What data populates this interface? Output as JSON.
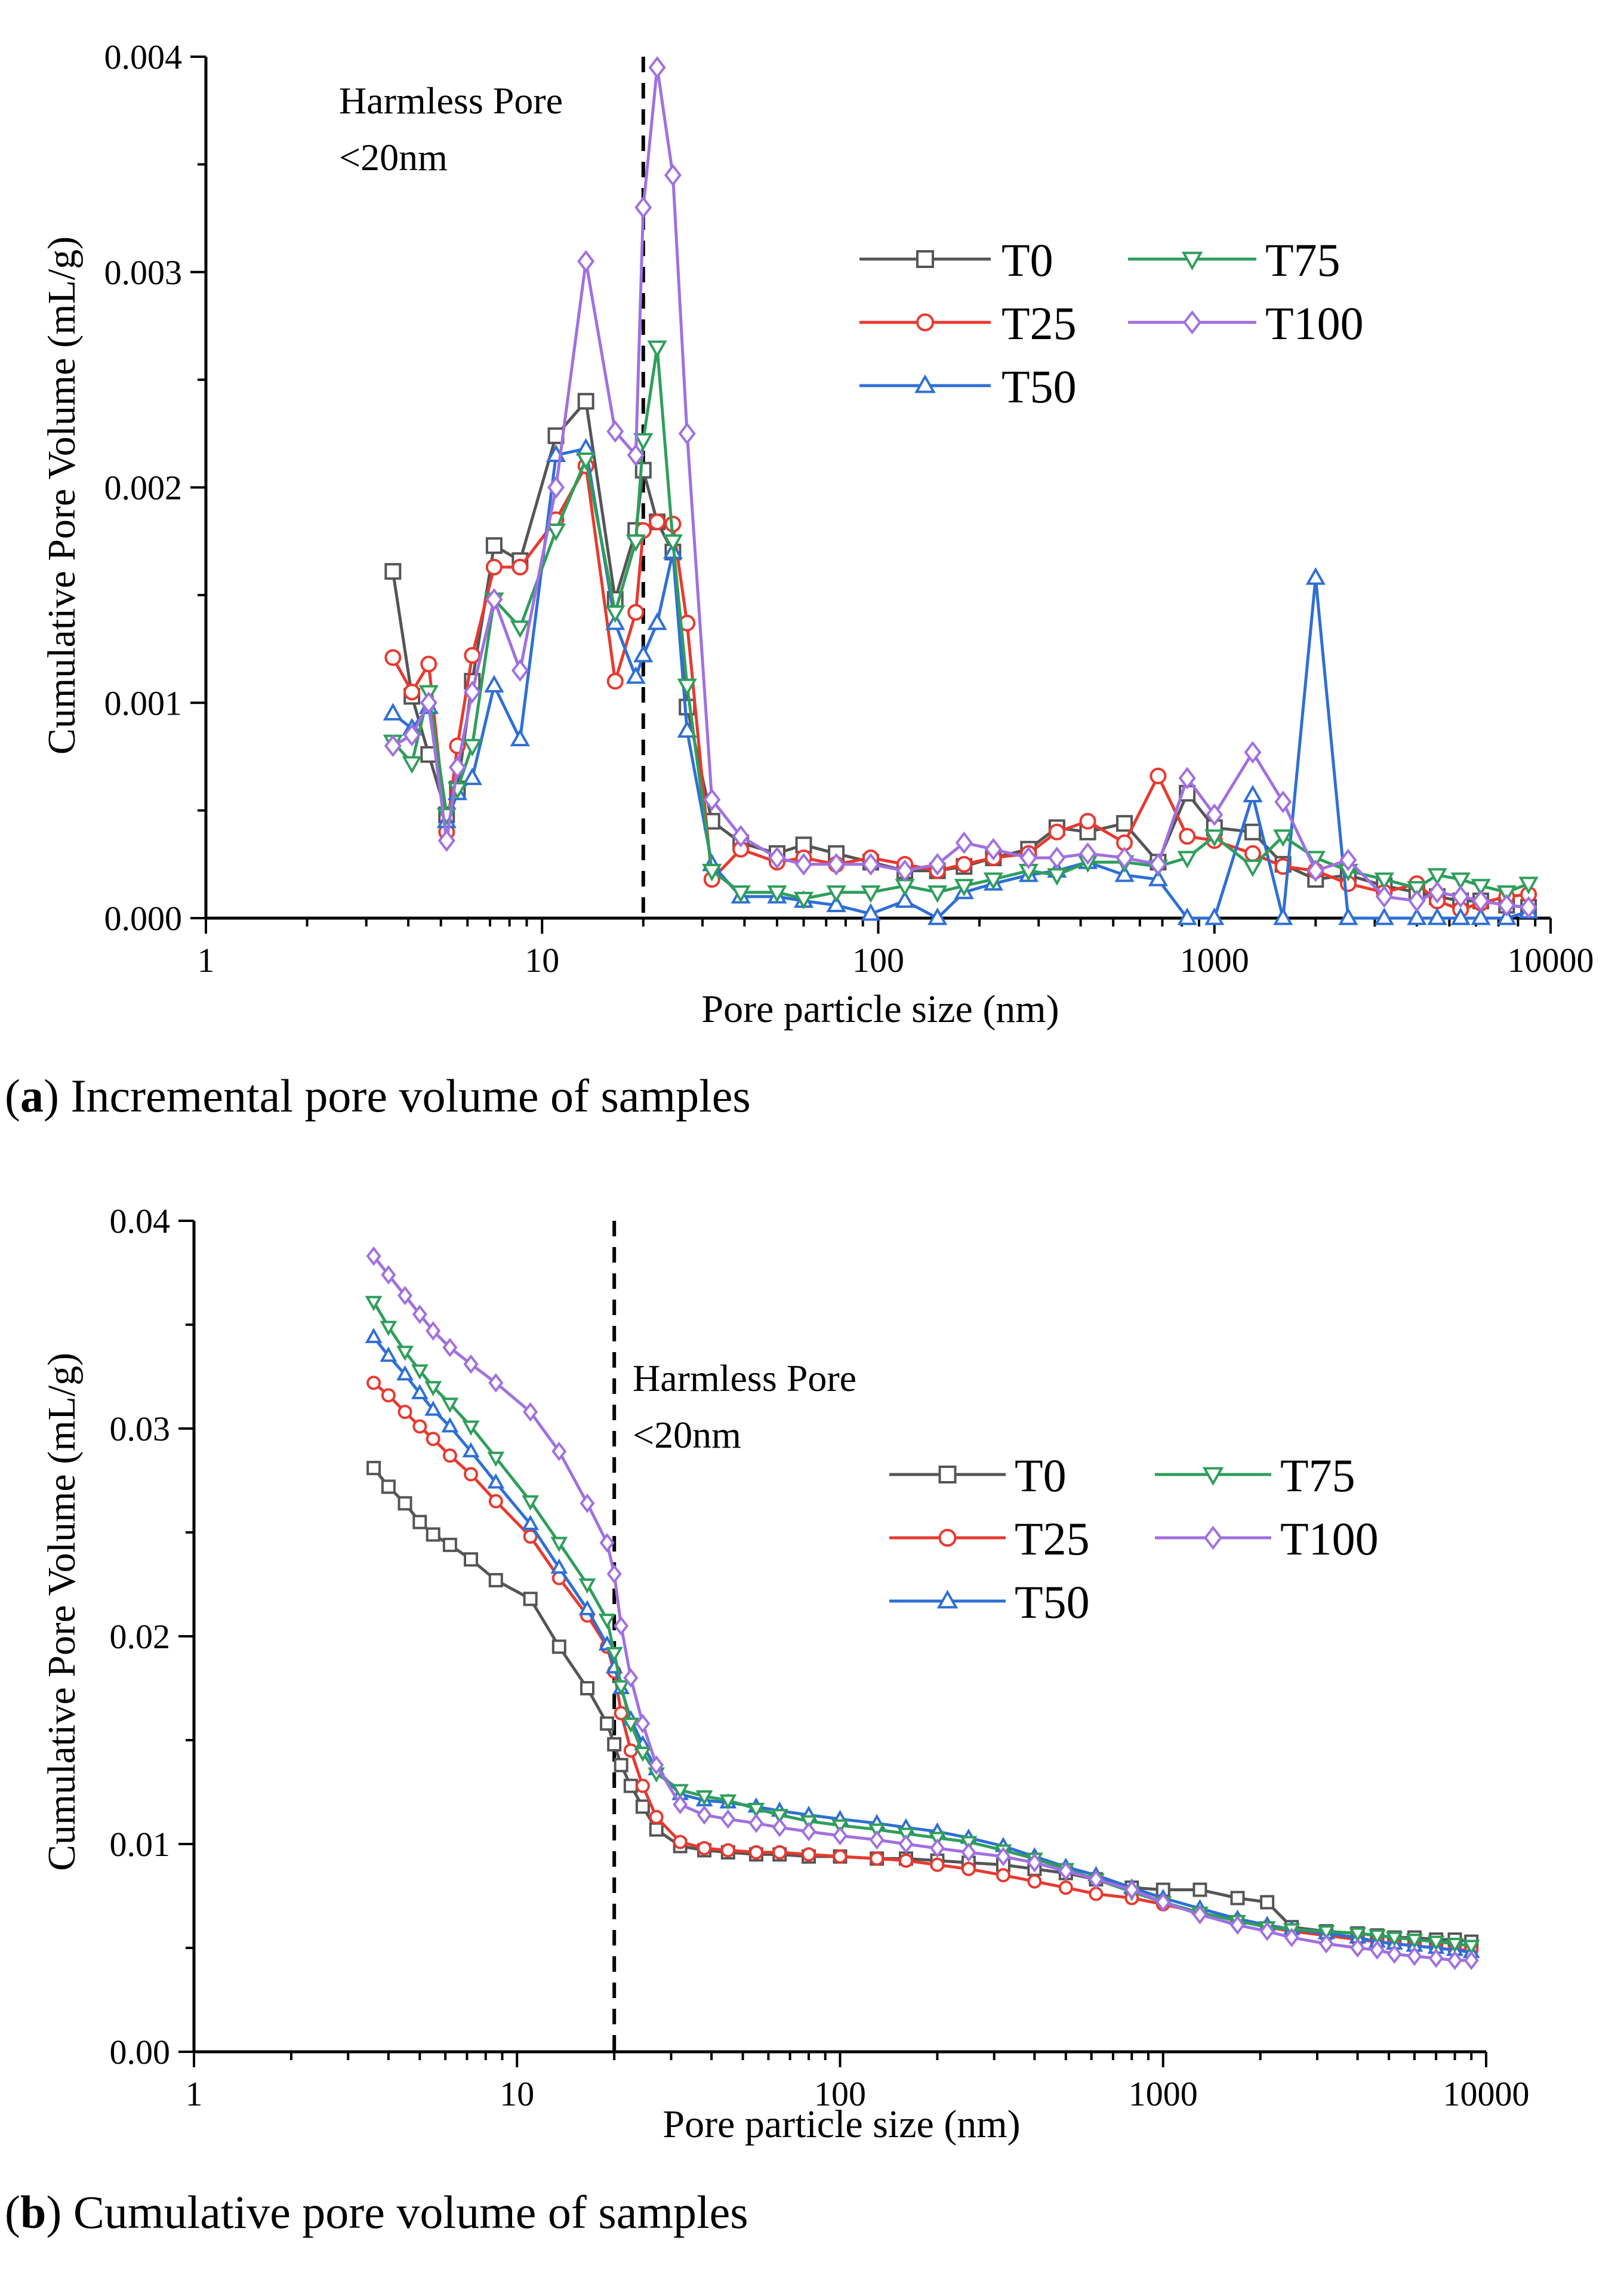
{
  "colors": {
    "T0": "#555555",
    "T25": "#e8392f",
    "T50": "#2e6fd6",
    "T75": "#2f9e5b",
    "T100": "#a070e0"
  },
  "chart_data": [
    {
      "type": "line",
      "title": "",
      "caption_letter": "a",
      "caption_text": " Incremental pore volume of samples",
      "xlabel": "Pore particle size (nm)",
      "ylabel": "Cumulative Pore Volume (mL/g)",
      "xscale": "log",
      "xlim": [
        1,
        10000
      ],
      "ylim": [
        0,
        0.004
      ],
      "xticks": [
        "1",
        "10",
        "100",
        "1000",
        "10000"
      ],
      "yticks": [
        "0.000",
        "0.001",
        "0.002",
        "0.003",
        "0.004"
      ],
      "annotation": {
        "line1": "Harmless Pore",
        "line2": "<20nm",
        "x": 20
      },
      "legend_position": "top-right",
      "x": [
        3.6,
        4.1,
        4.6,
        5.2,
        5.6,
        6.2,
        7.2,
        8.6,
        11,
        13.5,
        16.5,
        19,
        20,
        22,
        24.5,
        27,
        32,
        39,
        50,
        60,
        75,
        95,
        120,
        150,
        180,
        220,
        280,
        340,
        420,
        540,
        680,
        830,
        1000,
        1300,
        1600,
        2000,
        2500,
        3200,
        4000,
        4600,
        5400,
        6200,
        7400,
        8600
      ],
      "series": [
        {
          "name": "T0",
          "marker": "square",
          "values": [
            0.00161,
            0.00103,
            0.00076,
            0.00048,
            0.0006,
            0.0011,
            0.00173,
            0.00166,
            0.00224,
            0.0024,
            0.00148,
            0.0018,
            0.00208,
            0.00184,
            0.0017,
            0.00098,
            0.00045,
            0.00035,
            0.0003,
            0.00034,
            0.0003,
            0.00026,
            0.00022,
            0.00022,
            0.00024,
            0.00028,
            0.00032,
            0.00042,
            0.0004,
            0.00044,
            0.00026,
            0.00058,
            0.00042,
            0.0004,
            0.00025,
            0.00018,
            0.0002,
            0.00015,
            0.00012,
            0.0001,
            8e-05,
            8e-05,
            6e-05,
            5e-05
          ]
        },
        {
          "name": "T25",
          "marker": "circle",
          "values": [
            0.00121,
            0.00105,
            0.00118,
            0.0004,
            0.0008,
            0.00122,
            0.00163,
            0.00163,
            0.00185,
            0.0021,
            0.0011,
            0.00142,
            0.0018,
            0.00184,
            0.00183,
            0.00137,
            0.00018,
            0.00032,
            0.00026,
            0.00028,
            0.00025,
            0.00028,
            0.00025,
            0.00022,
            0.00025,
            0.00028,
            0.0003,
            0.0004,
            0.00045,
            0.00035,
            0.00066,
            0.00038,
            0.00036,
            0.0003,
            0.00024,
            0.00022,
            0.00016,
            0.00012,
            0.00016,
            8e-05,
            4e-05,
            7e-05,
            0.0001,
            0.00011
          ]
        },
        {
          "name": "T50",
          "marker": "triangle-up",
          "values": [
            0.00095,
            0.00088,
            0.00098,
            0.00045,
            0.00058,
            0.00065,
            0.00108,
            0.00083,
            0.00215,
            0.00218,
            0.00137,
            0.00112,
            0.00122,
            0.00137,
            0.0017,
            0.00087,
            0.00025,
            0.0001,
            0.0001,
            8e-05,
            6e-05,
            2e-05,
            8e-05,
            0.0,
            0.00012,
            0.00016,
            0.0002,
            0.00022,
            0.00026,
            0.0002,
            0.00018,
            0.0,
            0.0,
            0.00057,
            0.0,
            0.00158,
            0.0,
            0.0,
            0.0,
            0.0,
            0.0,
            0.0,
            0.0,
            3e-05
          ]
        },
        {
          "name": "T75",
          "marker": "triangle-down",
          "values": [
            0.00082,
            0.00072,
            0.00105,
            0.00048,
            0.0006,
            0.0008,
            0.00148,
            0.00135,
            0.0018,
            0.00213,
            0.00142,
            0.00175,
            0.00222,
            0.00265,
            0.00175,
            0.00108,
            0.00022,
            0.00012,
            0.00012,
            9e-05,
            0.00012,
            0.00012,
            0.00015,
            0.00012,
            0.00015,
            0.00018,
            0.00022,
            0.0002,
            0.00026,
            0.00026,
            0.00024,
            0.00028,
            0.00038,
            0.00024,
            0.00038,
            0.00028,
            0.00022,
            0.00018,
            0.00014,
            0.0002,
            0.00018,
            0.00015,
            0.00012,
            0.00016
          ]
        },
        {
          "name": "T100",
          "marker": "diamond",
          "values": [
            0.0008,
            0.00085,
            0.001,
            0.00036,
            0.0007,
            0.00105,
            0.00148,
            0.00115,
            0.002,
            0.00305,
            0.00226,
            0.00215,
            0.0033,
            0.00395,
            0.00345,
            0.00225,
            0.00055,
            0.00038,
            0.00028,
            0.00025,
            0.00025,
            0.00025,
            0.00022,
            0.00025,
            0.00035,
            0.00032,
            0.00028,
            0.00028,
            0.0003,
            0.00028,
            0.00025,
            0.00065,
            0.00048,
            0.00077,
            0.00054,
            0.00022,
            0.00027,
            0.0001,
            8e-05,
            0.00012,
            0.0001,
            8e-05,
            6e-05,
            5e-05
          ]
        }
      ]
    },
    {
      "type": "line",
      "title": "",
      "caption_letter": "b",
      "caption_text": " Cumulative pore volume of samples",
      "xlabel": "Pore particle size (nm)",
      "ylabel": "Cumulative Pore Volume (mL/g)",
      "xscale": "log",
      "xlim": [
        1,
        10000
      ],
      "ylim": [
        0,
        0.04
      ],
      "xticks": [
        "1",
        "10",
        "100",
        "1000",
        "10000"
      ],
      "yticks": [
        "0.00",
        "0.01",
        "0.02",
        "0.03",
        "0.04"
      ],
      "annotation": {
        "line1": "Harmless Pore",
        "line2": "<20nm",
        "x": 20
      },
      "legend_position": "top-right",
      "x": [
        3.6,
        4.0,
        4.5,
        5.0,
        5.5,
        6.2,
        7.2,
        8.6,
        11,
        13.5,
        16.5,
        19,
        20,
        21,
        22.5,
        24.5,
        27,
        32,
        38,
        45,
        55,
        65,
        80,
        100,
        130,
        160,
        200,
        250,
        320,
        400,
        500,
        620,
        800,
        1000,
        1300,
        1700,
        2100,
        2500,
        3200,
        4000,
        4600,
        5200,
        6000,
        7000,
        8000,
        9000
      ],
      "series": [
        {
          "name": "T0",
          "marker": "square",
          "values": [
            0.0281,
            0.0272,
            0.0264,
            0.0255,
            0.0249,
            0.0244,
            0.0237,
            0.0227,
            0.0218,
            0.0195,
            0.0175,
            0.0158,
            0.0148,
            0.0138,
            0.0128,
            0.0118,
            0.0107,
            0.0099,
            0.0097,
            0.0096,
            0.0095,
            0.0095,
            0.0094,
            0.0094,
            0.0093,
            0.0093,
            0.0092,
            0.0091,
            0.009,
            0.0088,
            0.0086,
            0.0083,
            0.0079,
            0.0078,
            0.0078,
            0.0074,
            0.0072,
            0.006,
            0.0058,
            0.0057,
            0.0056,
            0.0055,
            0.0055,
            0.0054,
            0.0054,
            0.0053
          ]
        },
        {
          "name": "T25",
          "marker": "circle",
          "values": [
            0.0322,
            0.0316,
            0.0308,
            0.0301,
            0.0295,
            0.0287,
            0.0278,
            0.0265,
            0.0248,
            0.0228,
            0.021,
            0.0195,
            0.0183,
            0.0163,
            0.0145,
            0.0128,
            0.0113,
            0.0101,
            0.0098,
            0.0097,
            0.0096,
            0.0096,
            0.0095,
            0.0094,
            0.0093,
            0.0092,
            0.009,
            0.0088,
            0.0085,
            0.0082,
            0.0079,
            0.0076,
            0.0074,
            0.0071,
            0.0067,
            0.0063,
            0.006,
            0.0058,
            0.0056,
            0.0054,
            0.0053,
            0.0052,
            0.0051,
            0.005,
            0.0049,
            0.0049
          ]
        },
        {
          "name": "T50",
          "marker": "triangle-up",
          "values": [
            0.0344,
            0.0335,
            0.0326,
            0.0317,
            0.0309,
            0.0301,
            0.0289,
            0.0274,
            0.0254,
            0.0233,
            0.0213,
            0.0196,
            0.0185,
            0.0175,
            0.016,
            0.0148,
            0.0136,
            0.0124,
            0.0121,
            0.012,
            0.0118,
            0.0116,
            0.0114,
            0.0112,
            0.011,
            0.0108,
            0.0106,
            0.0103,
            0.0099,
            0.0094,
            0.0089,
            0.0085,
            0.0079,
            0.0074,
            0.0069,
            0.0064,
            0.0061,
            0.0059,
            0.0057,
            0.0055,
            0.0053,
            0.0052,
            0.0051,
            0.005,
            0.0049,
            0.0048
          ]
        },
        {
          "name": "T75",
          "marker": "triangle-down",
          "values": [
            0.0361,
            0.0349,
            0.0337,
            0.0328,
            0.032,
            0.0312,
            0.0301,
            0.0286,
            0.0265,
            0.0245,
            0.0225,
            0.0208,
            0.0192,
            0.0176,
            0.0158,
            0.0144,
            0.0134,
            0.0126,
            0.0123,
            0.0121,
            0.0117,
            0.0114,
            0.0111,
            0.0109,
            0.0107,
            0.0105,
            0.0103,
            0.0101,
            0.0097,
            0.0093,
            0.0088,
            0.0083,
            0.0077,
            0.0072,
            0.0067,
            0.0063,
            0.006,
            0.0059,
            0.0058,
            0.0057,
            0.0056,
            0.0055,
            0.0054,
            0.0053,
            0.0052,
            0.0051
          ]
        },
        {
          "name": "T100",
          "marker": "diamond",
          "values": [
            0.0383,
            0.0374,
            0.0364,
            0.0355,
            0.0347,
            0.0339,
            0.0331,
            0.0322,
            0.0308,
            0.0289,
            0.0264,
            0.0245,
            0.023,
            0.0205,
            0.018,
            0.0158,
            0.0138,
            0.0119,
            0.0114,
            0.0112,
            0.011,
            0.0108,
            0.0106,
            0.0104,
            0.0102,
            0.01,
            0.0098,
            0.0096,
            0.0094,
            0.0091,
            0.0087,
            0.0083,
            0.0078,
            0.0072,
            0.0066,
            0.0061,
            0.0058,
            0.0055,
            0.0052,
            0.005,
            0.0049,
            0.0047,
            0.0046,
            0.0045,
            0.0044,
            0.0044
          ]
        }
      ]
    }
  ]
}
